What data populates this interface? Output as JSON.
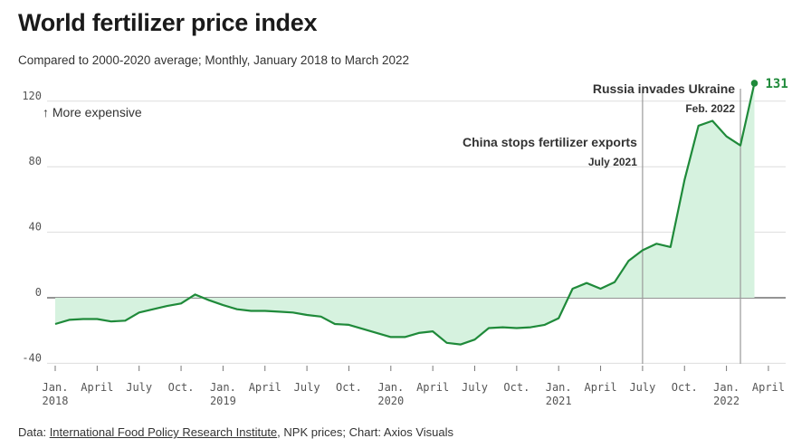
{
  "header": {
    "title": "World fertilizer price index",
    "subtitle": "Compared to 2000-2020 average; Monthly, January 2018 to March 2022"
  },
  "footer": {
    "prefix": "Data: ",
    "source_link": "International Food Policy Research Institute",
    "suffix": ", NPK prices; Chart: Axios Visuals"
  },
  "colors": {
    "line": "#1f8a3a",
    "area": "#d6f2df",
    "annotation_line": "#999999",
    "grid": "#dddddd"
  },
  "chart_data": {
    "type": "area",
    "title": "World fertilizer price index",
    "xlabel": "",
    "ylabel": "",
    "ylim": [
      -40,
      131
    ],
    "yticks": [
      120,
      80,
      40,
      0,
      -40
    ],
    "x_month_range": [
      "2018-01",
      "2022-04"
    ],
    "xticks": [
      {
        "month": "2018-01",
        "label": "Jan.",
        "year": "2018"
      },
      {
        "month": "2018-04",
        "label": "April",
        "year": ""
      },
      {
        "month": "2018-07",
        "label": "July",
        "year": ""
      },
      {
        "month": "2018-10",
        "label": "Oct.",
        "year": ""
      },
      {
        "month": "2019-01",
        "label": "Jan.",
        "year": "2019"
      },
      {
        "month": "2019-04",
        "label": "April",
        "year": ""
      },
      {
        "month": "2019-07",
        "label": "July",
        "year": ""
      },
      {
        "month": "2019-10",
        "label": "Oct.",
        "year": ""
      },
      {
        "month": "2020-01",
        "label": "Jan.",
        "year": "2020"
      },
      {
        "month": "2020-04",
        "label": "April",
        "year": ""
      },
      {
        "month": "2020-07",
        "label": "July",
        "year": ""
      },
      {
        "month": "2020-10",
        "label": "Oct.",
        "year": ""
      },
      {
        "month": "2021-01",
        "label": "Jan.",
        "year": "2021"
      },
      {
        "month": "2021-04",
        "label": "April",
        "year": ""
      },
      {
        "month": "2021-07",
        "label": "July",
        "year": ""
      },
      {
        "month": "2021-10",
        "label": "Oct.",
        "year": ""
      },
      {
        "month": "2022-01",
        "label": "Jan.",
        "year": "2022"
      },
      {
        "month": "2022-04",
        "label": "April",
        "year": ""
      }
    ],
    "series": [
      {
        "values": [
          {
            "month": "2018-01",
            "value": -16
          },
          {
            "month": "2018-02",
            "value": -13.5
          },
          {
            "month": "2018-03",
            "value": -13
          },
          {
            "month": "2018-04",
            "value": -13
          },
          {
            "month": "2018-05",
            "value": -14.5
          },
          {
            "month": "2018-06",
            "value": -14
          },
          {
            "month": "2018-07",
            "value": -9
          },
          {
            "month": "2018-08",
            "value": -7
          },
          {
            "month": "2018-09",
            "value": -5
          },
          {
            "month": "2018-10",
            "value": -3.5
          },
          {
            "month": "2018-11",
            "value": 2
          },
          {
            "month": "2018-12",
            "value": -1.5
          },
          {
            "month": "2019-01",
            "value": -4.5
          },
          {
            "month": "2019-02",
            "value": -7
          },
          {
            "month": "2019-03",
            "value": -8
          },
          {
            "month": "2019-04",
            "value": -8
          },
          {
            "month": "2019-05",
            "value": -8.5
          },
          {
            "month": "2019-06",
            "value": -9
          },
          {
            "month": "2019-07",
            "value": -10.5
          },
          {
            "month": "2019-08",
            "value": -11.5
          },
          {
            "month": "2019-09",
            "value": -16
          },
          {
            "month": "2019-10",
            "value": -16.5
          },
          {
            "month": "2019-11",
            "value": -19
          },
          {
            "month": "2019-12",
            "value": -21.5
          },
          {
            "month": "2020-01",
            "value": -24
          },
          {
            "month": "2020-02",
            "value": -24
          },
          {
            "month": "2020-03",
            "value": -21.5
          },
          {
            "month": "2020-04",
            "value": -20.5
          },
          {
            "month": "2020-05",
            "value": -27.5
          },
          {
            "month": "2020-06",
            "value": -28.5
          },
          {
            "month": "2020-07",
            "value": -25.5
          },
          {
            "month": "2020-08",
            "value": -18.5
          },
          {
            "month": "2020-09",
            "value": -18
          },
          {
            "month": "2020-10",
            "value": -18.5
          },
          {
            "month": "2020-11",
            "value": -18
          },
          {
            "month": "2020-12",
            "value": -16.5
          },
          {
            "month": "2021-01",
            "value": -12.5
          },
          {
            "month": "2021-02",
            "value": 5.5
          },
          {
            "month": "2021-03",
            "value": 9
          },
          {
            "month": "2021-04",
            "value": 5.5
          },
          {
            "month": "2021-05",
            "value": 9.5
          },
          {
            "month": "2021-06",
            "value": 22.5
          },
          {
            "month": "2021-07",
            "value": 29
          },
          {
            "month": "2021-08",
            "value": 33
          },
          {
            "month": "2021-09",
            "value": 31
          },
          {
            "month": "2021-10",
            "value": 72
          },
          {
            "month": "2021-11",
            "value": 105
          },
          {
            "month": "2021-12",
            "value": 108
          },
          {
            "month": "2022-01",
            "value": 98.5
          },
          {
            "month": "2022-02",
            "value": 93
          },
          {
            "month": "2022-03",
            "value": 131
          }
        ]
      }
    ],
    "end_label": "131",
    "y_direction_label": "↑ More expensive",
    "annotations": [
      {
        "month": "2021-07",
        "title": "China stops fertilizer exports",
        "date": "July 2021"
      },
      {
        "month": "2022-02",
        "title": "Russia invades Ukraine",
        "date": "Feb. 2022"
      }
    ],
    "grid": true
  }
}
